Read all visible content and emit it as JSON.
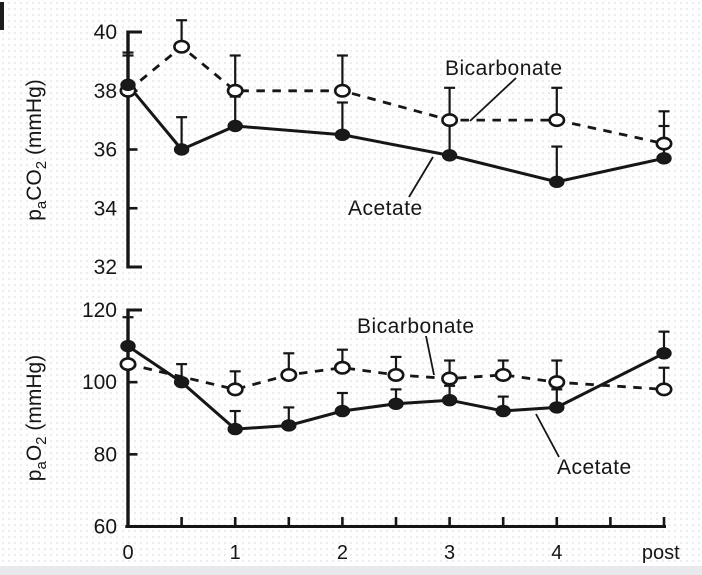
{
  "figure": {
    "panels": [
      "paCO2 (mmHg)",
      "paO2 (mmHg)"
    ],
    "series_labels": {
      "bicarbonate": "Bicarbonate",
      "acetate": "Acetate"
    },
    "ink_color": "#161616"
  },
  "chart_data": [
    {
      "type": "line",
      "panel": "top",
      "ylabel": "paCO2 (mmHg)",
      "ylabel_parts": [
        {
          "text": "p",
          "sub": false
        },
        {
          "text": "a",
          "sub": true
        },
        {
          "text": "CO",
          "sub": false
        },
        {
          "text": "2",
          "sub": true
        },
        {
          "text": " (mmHg)",
          "sub": false
        }
      ],
      "ylim": [
        32,
        40
      ],
      "yticks": [
        32,
        34,
        36,
        38,
        40
      ],
      "categories": [
        "0",
        "0.5",
        "1",
        "2",
        "3",
        "4",
        "post"
      ],
      "x_numeric": [
        0,
        0.5,
        1,
        2,
        3,
        4,
        5
      ],
      "grid": false,
      "series": [
        {
          "name": "Bicarbonate",
          "marker": "open",
          "line": "dashed",
          "values": [
            38.0,
            39.5,
            38.0,
            38.0,
            37.0,
            37.0,
            36.2
          ],
          "err_up": [
            1.2,
            0.9,
            1.2,
            1.2,
            1.1,
            1.1,
            1.1
          ]
        },
        {
          "name": "Acetate",
          "marker": "filled",
          "line": "solid",
          "values": [
            38.2,
            36.0,
            36.8,
            36.5,
            35.8,
            34.9,
            35.7
          ],
          "err_up": [
            1.1,
            1.1,
            1.0,
            1.1,
            1.2,
            1.2,
            1.1
          ]
        }
      ]
    },
    {
      "type": "line",
      "panel": "bottom",
      "ylabel": "paO2 (mmHg)",
      "ylabel_parts": [
        {
          "text": "p",
          "sub": false
        },
        {
          "text": "a",
          "sub": true
        },
        {
          "text": "O",
          "sub": false
        },
        {
          "text": "2",
          "sub": true
        },
        {
          "text": " (mmHg)",
          "sub": false
        }
      ],
      "ylim": [
        60,
        120
      ],
      "yticks": [
        60,
        80,
        100,
        120
      ],
      "categories": [
        "0",
        "0.5",
        "1",
        "1.5",
        "2",
        "2.5",
        "3",
        "3.5",
        "4",
        "post"
      ],
      "x_numeric": [
        0,
        0.5,
        1,
        1.5,
        2,
        2.5,
        3,
        3.5,
        4,
        5
      ],
      "grid": false,
      "series": [
        {
          "name": "Bicarbonate",
          "marker": "open",
          "line": "dashed",
          "values": [
            105,
            null,
            98,
            102,
            104,
            102,
            101,
            102,
            100,
            98
          ],
          "err_up": [
            5,
            null,
            5,
            6,
            5,
            5,
            5,
            4,
            6,
            6
          ]
        },
        {
          "name": "Acetate",
          "marker": "filled",
          "line": "solid",
          "values": [
            110,
            100,
            87,
            88,
            92,
            94,
            95,
            92,
            93,
            108
          ],
          "err_up": [
            8,
            5,
            5,
            5,
            5,
            4,
            4,
            4,
            5,
            6
          ]
        }
      ],
      "xaxis": {
        "tick_positions": [
          0.5,
          1,
          1.5,
          2,
          2.5,
          3,
          3.5,
          4,
          4.5,
          5
        ],
        "label_positions": [
          0,
          1,
          2,
          3,
          4,
          4.97
        ],
        "labels": [
          "0",
          "1",
          "2",
          "3",
          "4",
          "post"
        ]
      }
    }
  ]
}
